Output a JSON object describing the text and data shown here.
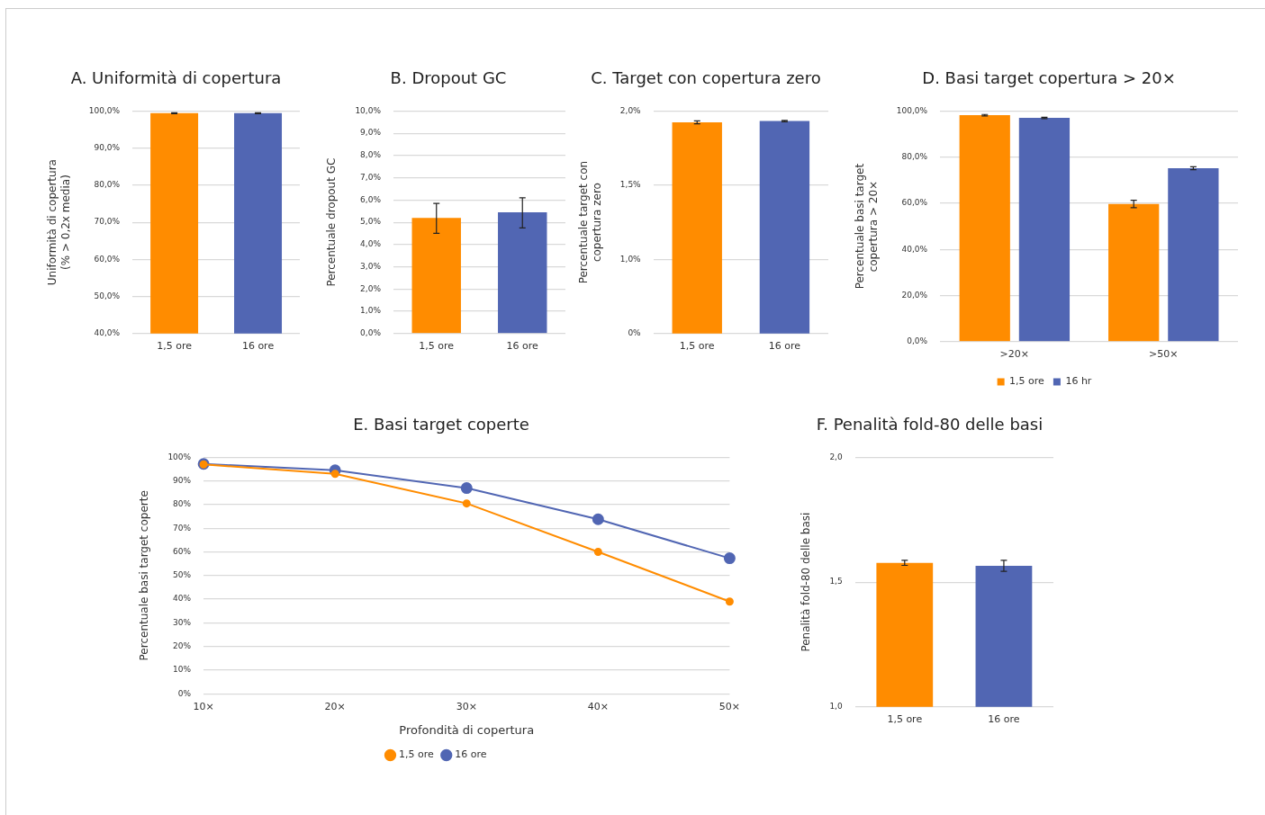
{
  "chart_data": [
    {
      "type": "bar",
      "title": "A. Uniformità di copertura",
      "ylabel": "Uniformità di copertura\n(% > 0,2x media)",
      "categories": [
        "1,5 ore",
        "16 ore"
      ],
      "values": [
        99.4,
        99.4
      ],
      "colors": [
        "#ff8c00",
        "#5166b3"
      ],
      "errors": [
        0.1,
        0.1
      ],
      "ylim": [
        40,
        100
      ],
      "yticks": [
        {
          "value": 40,
          "label": "40,0%"
        },
        {
          "value": 50,
          "label": "50,0%"
        },
        {
          "value": 60,
          "label": "60,0%"
        },
        {
          "value": 70,
          "label": "70,0%"
        },
        {
          "value": 80,
          "label": "80,0%"
        },
        {
          "value": 90,
          "label": "90,0%"
        },
        {
          "value": 100,
          "label": "100,0%"
        }
      ],
      "grid": "y"
    },
    {
      "type": "bar",
      "title": "B. Dropout GC",
      "ylabel": "Percentuale dropout GC",
      "categories": [
        "1,5 ore",
        "16 ore"
      ],
      "values": [
        5.2,
        5.45
      ],
      "colors": [
        "#ff8c00",
        "#5166b3"
      ],
      "errors": [
        [
          4.5,
          5.85
        ],
        [
          4.75,
          6.1
        ]
      ],
      "ylim": [
        0,
        10
      ],
      "yticks": [
        {
          "value": 0,
          "label": "0,0%"
        },
        {
          "value": 1,
          "label": "1,0%"
        },
        {
          "value": 2,
          "label": "2,0%"
        },
        {
          "value": 3,
          "label": "3,0%"
        },
        {
          "value": 4,
          "label": "4,0%"
        },
        {
          "value": 5,
          "label": "5,0%"
        },
        {
          "value": 6,
          "label": "6,0%"
        },
        {
          "value": 7,
          "label": "7,0%"
        },
        {
          "value": 8,
          "label": "8,0%"
        },
        {
          "value": 9,
          "label": "9,0%"
        },
        {
          "value": 10,
          "label": "10,0%"
        }
      ],
      "grid": "y"
    },
    {
      "type": "bar",
      "title": "C. Target con copertura zero",
      "ylabel": "Percentuale target con\ncopertura zero",
      "categories": [
        "1,5 ore",
        "16 ore"
      ],
      "values": [
        1.924,
        1.932
      ],
      "colors": [
        "#ff8c00",
        "#5166b3"
      ],
      "errors": [
        0.01,
        0.005
      ],
      "ylim": [
        0.5,
        2.0
      ],
      "yticks": [
        {
          "value": 0.5,
          "label": "0%"
        },
        {
          "value": 1.0,
          "label": "1,0%"
        },
        {
          "value": 1.5,
          "label": "1,5%"
        },
        {
          "value": 2.0,
          "label": "2,0%"
        }
      ],
      "grid": "y"
    },
    {
      "type": "bar",
      "title": "D. Basi target copertura > 20×",
      "ylabel": "Percentuale basi target\ncopertura > 20×",
      "categories": [
        ">20×",
        ">50×"
      ],
      "series": [
        {
          "name": "1,5 ore",
          "color": "#ff8c00",
          "values": [
            98.2,
            59.7
          ],
          "errors": [
            0.3,
            1.6
          ]
        },
        {
          "name": "16 hr",
          "color": "#5166b3",
          "values": [
            97.0,
            75.2
          ],
          "errors": [
            0.3,
            0.6
          ]
        }
      ],
      "ylim": [
        0,
        100
      ],
      "yticks": [
        {
          "value": 0,
          "label": "0,0%"
        },
        {
          "value": 20,
          "label": "20,0%"
        },
        {
          "value": 40,
          "label": "40,0%"
        },
        {
          "value": 60,
          "label": "60,0%"
        },
        {
          "value": 80,
          "label": "80,0%"
        },
        {
          "value": 100,
          "label": "100,0%"
        }
      ],
      "grid": "y",
      "legend": "bottom"
    },
    {
      "type": "line",
      "title": "E. Basi target coperte",
      "xlabel": "Profondità di copertura",
      "ylabel": "Percentuale basi target coperte",
      "categories": [
        "10×",
        "20×",
        "30×",
        "40×",
        "50×"
      ],
      "series": [
        {
          "name": "1,5 ore",
          "color": "#ff8c00",
          "values": [
            97,
            93,
            80.5,
            60,
            39
          ]
        },
        {
          "name": "16 ore",
          "color": "#5166b3",
          "values": [
            97.2,
            94.5,
            87,
            73.8,
            57.3
          ]
        }
      ],
      "ylim": [
        0,
        100
      ],
      "yticks": [
        {
          "value": 0,
          "label": "0%"
        },
        {
          "value": 10,
          "label": "10%"
        },
        {
          "value": 20,
          "label": "20%"
        },
        {
          "value": 30,
          "label": "30%"
        },
        {
          "value": 40,
          "label": "40%"
        },
        {
          "value": 50,
          "label": "50%"
        },
        {
          "value": 60,
          "label": "60%"
        },
        {
          "value": 70,
          "label": "70%"
        },
        {
          "value": 80,
          "label": "80%"
        },
        {
          "value": 90,
          "label": "90%"
        },
        {
          "value": 100,
          "label": "100%"
        }
      ],
      "grid": "y",
      "legend": "bottom",
      "marker": "circle"
    },
    {
      "type": "bar",
      "title": "F. Penalità fold-80 delle basi",
      "ylabel": "Penalità fold-80 delle basi",
      "categories": [
        "1,5 ore",
        "16 ore"
      ],
      "values": [
        1.577,
        1.565
      ],
      "colors": [
        "#ff8c00",
        "#5166b3"
      ],
      "errors": [
        0.01,
        0.022
      ],
      "ylim": [
        1.0,
        2.0
      ],
      "yticks": [
        {
          "value": 1.0,
          "label": "1,0"
        },
        {
          "value": 1.5,
          "label": "1,5"
        },
        {
          "value": 2.0,
          "label": "2,0"
        }
      ],
      "grid": "y"
    }
  ]
}
